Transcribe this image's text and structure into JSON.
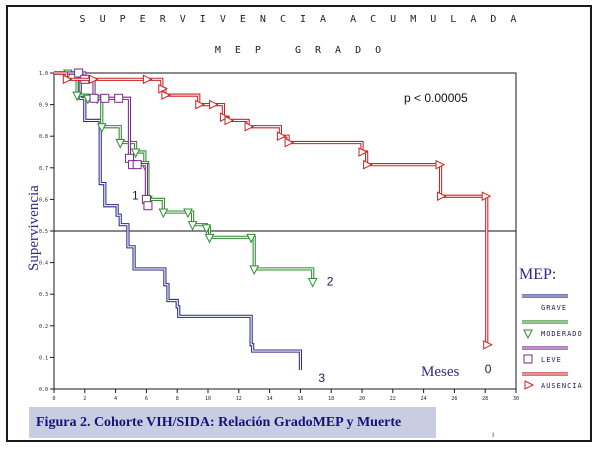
{
  "title_line1": "S U P E R V I V E N C I A  A C U M U L A D A",
  "title_line2": "M E P   G R A D O",
  "caption": "Figura 2. Cohorte VIH/SIDA: Relación GradoMEP y Muerte",
  "footer_mark": "ı",
  "chart_data": {
    "type": "line",
    "step": true,
    "ylabel": "Supervivencia",
    "xlabel": "Meses",
    "pvalue": "p < 0.00005",
    "legend_title": "MEP:",
    "legend_position": "right",
    "xlim": [
      0,
      30
    ],
    "ylim": [
      0,
      1.0
    ],
    "x_ticks": [
      0,
      2,
      4,
      6,
      8,
      10,
      12,
      14,
      16,
      18,
      20,
      22,
      24,
      26,
      28,
      30
    ],
    "y_ticks": [
      0,
      0.1,
      0.2,
      0.3,
      0.4,
      0.5,
      0.6,
      0.7,
      0.8,
      0.9,
      1.0
    ],
    "reference_line": 0.5,
    "series": [
      {
        "name": "GRAVE",
        "color": "#2b2b8a",
        "marker": "none",
        "end_label": "3",
        "x": [
          0,
          1.5,
          1.7,
          2.0,
          2.9,
          3.0,
          3.3,
          4.1,
          4.3,
          4.8,
          5.2,
          7.2,
          7.4,
          8.0,
          8.1,
          12.8,
          12.9,
          16.0
        ],
        "y": [
          1.0,
          1.0,
          0.92,
          0.85,
          0.85,
          0.65,
          0.58,
          0.55,
          0.52,
          0.45,
          0.38,
          0.33,
          0.28,
          0.26,
          0.23,
          0.14,
          0.12,
          0.06
        ]
      },
      {
        "name": "MODERADO",
        "color": "#2e8b2e",
        "marker": "triangle-down",
        "end_label": "2",
        "x": [
          0,
          0.9,
          1.5,
          2.2,
          2.8,
          3.1,
          4.3,
          5.3,
          5.9,
          6.1,
          7.1,
          8.7,
          9.0,
          9.9,
          10.1,
          12.8,
          13.0,
          16.8
        ],
        "y": [
          1.0,
          1.0,
          0.93,
          0.92,
          0.92,
          0.83,
          0.78,
          0.75,
          0.71,
          0.6,
          0.56,
          0.56,
          0.52,
          0.51,
          0.48,
          0.48,
          0.38,
          0.34
        ]
      },
      {
        "name": "LEVE",
        "color": "#7a2a8a",
        "marker": "square",
        "end_label": "1",
        "x": [
          0,
          1.6,
          2.0,
          2.6,
          3.3,
          4.2,
          4.9,
          5.1,
          5.4,
          6.0,
          6.1
        ],
        "y": [
          1.0,
          1.0,
          0.98,
          0.92,
          0.92,
          0.92,
          0.73,
          0.71,
          0.71,
          0.6,
          0.58
        ]
      },
      {
        "name": "AUSENCIA",
        "color": "#cc2222",
        "marker": "triangle-right",
        "end_label": "0",
        "x": [
          0,
          0.8,
          2.5,
          6.0,
          7.0,
          7.2,
          9.4,
          10.3,
          11.0,
          11.3,
          12.6,
          14.7,
          15.2,
          20.0,
          20.3,
          25.0,
          25.1,
          28.0,
          28.1
        ],
        "y": [
          1.0,
          0.98,
          0.98,
          0.98,
          0.95,
          0.93,
          0.9,
          0.9,
          0.86,
          0.85,
          0.83,
          0.8,
          0.78,
          0.75,
          0.71,
          0.71,
          0.61,
          0.61,
          0.14
        ]
      }
    ]
  }
}
